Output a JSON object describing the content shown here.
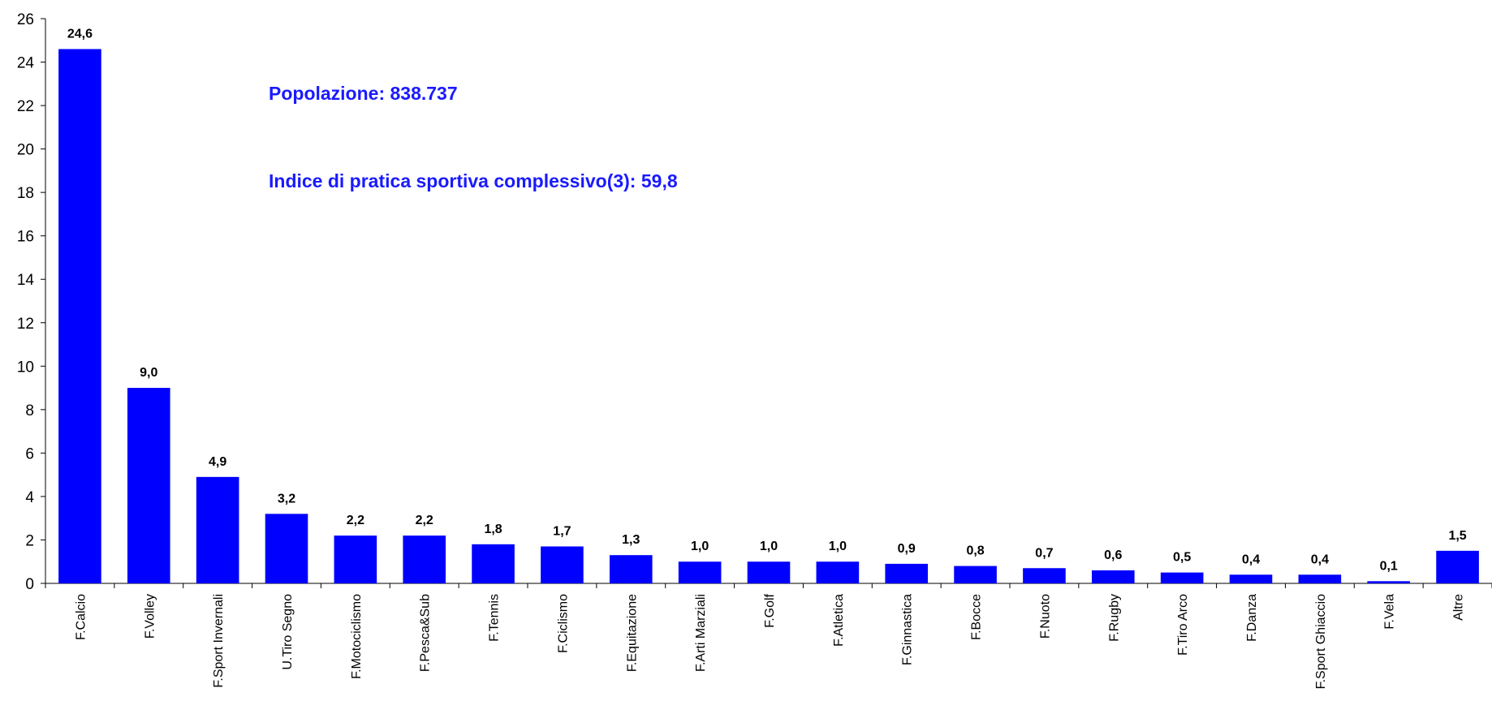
{
  "chart_data": {
    "type": "bar",
    "categories": [
      "F.Calcio",
      "F.Volley",
      "F.Sport Invernali",
      "U.Tiro Segno",
      "F.Motociclismo",
      "F.Pesca&Sub",
      "F.Tennis",
      "F.Ciclismo",
      "F.Equitazione",
      "F.Arti Marziali",
      "F.Golf",
      "F.Atletica",
      "F.Ginnastica",
      "F.Bocce",
      "F.Nuoto",
      "F.Rugby",
      "F.Tiro Arco",
      "F.Danza",
      "F.Sport Ghiaccio",
      "F.Vela",
      "Altre"
    ],
    "values": [
      24.6,
      9.0,
      4.9,
      3.2,
      2.2,
      2.2,
      1.8,
      1.7,
      1.3,
      1.0,
      1.0,
      1.0,
      0.9,
      0.8,
      0.7,
      0.6,
      0.5,
      0.4,
      0.4,
      0.1,
      1.5
    ],
    "data_labels": [
      "24,6",
      "9,0",
      "4,9",
      "3,2",
      "2,2",
      "2,2",
      "1,8",
      "1,7",
      "1,3",
      "1,0",
      "1,0",
      "1,0",
      "0,9",
      "0,8",
      "0,7",
      "0,6",
      "0,5",
      "0,4",
      "0,4",
      "0,1",
      "1,5"
    ],
    "ylim": [
      0,
      26
    ],
    "yticks": [
      0,
      2,
      4,
      6,
      8,
      10,
      12,
      14,
      16,
      18,
      20,
      22,
      24,
      26
    ],
    "title": "",
    "xlabel": "",
    "ylabel": "",
    "grid": false,
    "bar_color": "#0000ff",
    "annotations": [
      "Popolazione: 838.737",
      "Indice di pratica sportiva complessivo(3): 59,8"
    ],
    "annotation_color": "#1a1aff"
  }
}
